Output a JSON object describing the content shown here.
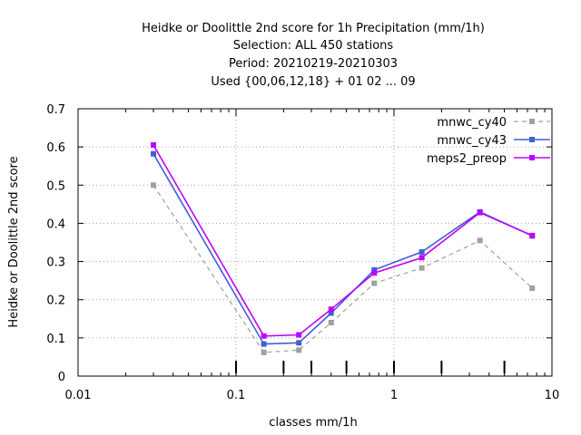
{
  "chart_data": {
    "type": "line",
    "title_lines": [
      "Heidke or Doolittle 2nd score  for 1h Precipitation (mm/1h)",
      "Selection: ALL    450 stations",
      "Period: 20210219-20210303",
      "Used {00,06,12,18} + 01 02 ... 09"
    ],
    "xlabel": "classes mm/1h",
    "ylabel": "Heidke or Doolittle 2nd score",
    "x_scale": "log",
    "xlim": [
      0.01,
      10
    ],
    "ylim": [
      0,
      0.7
    ],
    "x_ticks": [
      0.01,
      0.1,
      1,
      10
    ],
    "x_tick_labels": [
      "0.01",
      "0.1",
      "1",
      "10"
    ],
    "y_ticks": [
      0,
      0.1,
      0.2,
      0.3,
      0.4,
      0.5,
      0.6,
      0.7
    ],
    "y_tick_labels": [
      "0",
      "0.1",
      "0.2",
      "0.3",
      "0.4",
      "0.5",
      "0.6",
      "0.7"
    ],
    "grid": true,
    "legend_position": "top-right",
    "x": [
      0.03,
      0.15,
      0.25,
      0.4,
      0.75,
      1.5,
      3.5,
      7.5
    ],
    "series": [
      {
        "name": "mnwc_cy40",
        "color": "#a0a0a0",
        "dash": true,
        "values": [
          0.5,
          0.062,
          0.068,
          0.14,
          0.243,
          0.283,
          0.355,
          0.23
        ]
      },
      {
        "name": "mnwc_cy43",
        "color": "#4060d0",
        "dash": false,
        "values": [
          0.582,
          0.084,
          0.087,
          0.165,
          0.278,
          0.325,
          0.43,
          0.367
        ]
      },
      {
        "name": "meps2_preop",
        "color": "#c000ff",
        "dash": false,
        "values": [
          0.605,
          0.105,
          0.108,
          0.175,
          0.27,
          0.31,
          0.428,
          0.368
        ]
      }
    ],
    "class_boundary_marks": [
      0.2,
      0.3,
      0.5,
      2,
      5
    ]
  }
}
